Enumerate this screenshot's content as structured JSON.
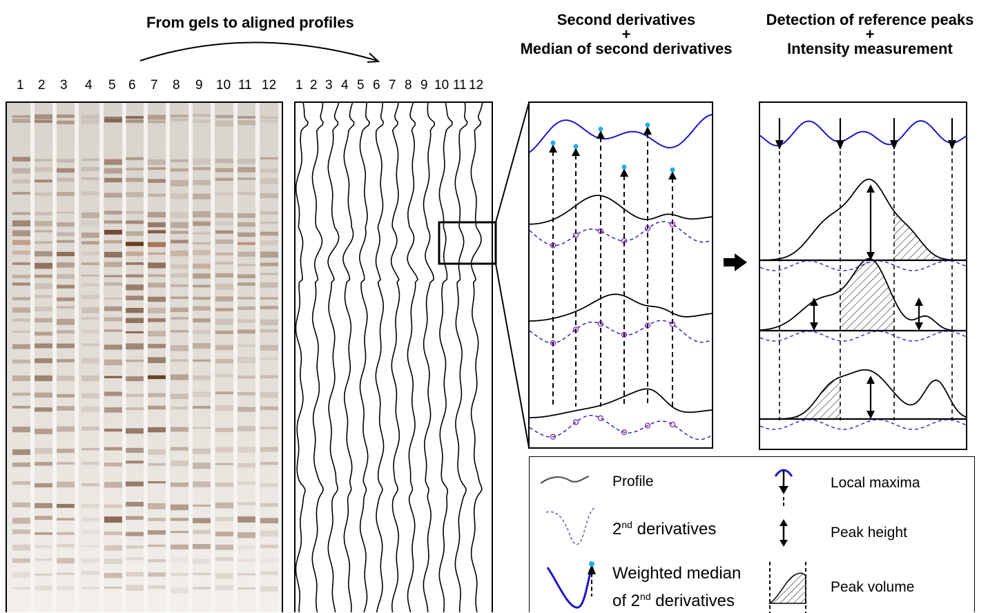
{
  "titles": {
    "gel": "From gels to aligned profiles",
    "second_deriv_line1": "Second derivatives",
    "second_deriv_plus": "+",
    "second_deriv_line2": "Median of second derivatives",
    "detection_line1": "Detection of reference peaks",
    "detection_plus": "+",
    "detection_line2": "Intensity measurement"
  },
  "gel_lanes": [
    "1",
    "2",
    "3",
    "4",
    "5",
    "6",
    "7",
    "8",
    "9",
    "10",
    "11",
    "12"
  ],
  "profile_lanes": [
    "1",
    "2",
    "3",
    "4",
    "5",
    "6",
    "7",
    "8",
    "9",
    "10",
    "11",
    "12"
  ],
  "legend": {
    "profile": "Profile",
    "second_derivatives_base": "2",
    "second_derivatives_sup": "nd",
    "second_derivatives_rest": " derivatives",
    "weighted_median_line1": "Weighted median",
    "weighted_median_line2_base": "of 2",
    "weighted_median_line2_sup": "nd",
    "weighted_median_line2_rest": " derivatives",
    "local_maxima": "Local maxima",
    "peak_height": "Peak height",
    "peak_volume": "Peak volume"
  },
  "colors": {
    "median_curve": "#1a14c8",
    "derivative_dashed": "#2a22c0",
    "maxima_dot": "#22aaee",
    "gel_band": "#5a2a10"
  }
}
